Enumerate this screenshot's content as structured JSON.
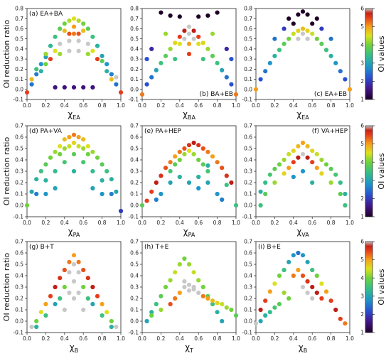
{
  "figure": {
    "ylabel": "OI reduction ratio",
    "colorbar_label": "OI values",
    "colorbar_ticks": [
      "1",
      "2",
      "3",
      "4",
      "5",
      "6"
    ],
    "colorbar_range": [
      1,
      6
    ],
    "colormap": [
      "#2a0a3a",
      "#3d1f8a",
      "#2b5bd0",
      "#2fa8c8",
      "#3cc08a",
      "#7dd83a",
      "#e8e21e",
      "#f79a1a",
      "#e8401a",
      "#b01818",
      "#c8c8c8"
    ]
  },
  "chart_data": [
    {
      "id": "a",
      "type": "scatter",
      "title": "(a) EA+BA",
      "title_pos": "top-left",
      "xlabel_main": "χ",
      "xlabel_sub": "EA",
      "xlim": [
        0,
        1
      ],
      "ylim": [
        -0.1,
        0.8
      ],
      "x": [
        0.4,
        0.45,
        0.5,
        0.55,
        0.6,
        0.35,
        0.65,
        0.3,
        0.7,
        0.25,
        0.75,
        0.2,
        0.8,
        0.15,
        0.85,
        0.1,
        0.9,
        0.05,
        0.95,
        0.0,
        1.0,
        0.3,
        0.4,
        0.5,
        0.6,
        0.7,
        0.5,
        0.45,
        0.55,
        0.2,
        0.1,
        0.05,
        0.9,
        0.95,
        0.35,
        0.45,
        0.55,
        0.65,
        0.4,
        0.6,
        0.5,
        0.2,
        0.3,
        0.7,
        0.8,
        0.15,
        0.85,
        0.25,
        0.75,
        0.45,
        0.55,
        0.35,
        0.65
      ],
      "y": [
        0.65,
        0.68,
        0.7,
        0.68,
        0.65,
        0.6,
        0.6,
        0.52,
        0.52,
        0.43,
        0.43,
        0.32,
        0.33,
        0.25,
        0.25,
        0.15,
        0.15,
        0.05,
        0.05,
        -0.03,
        -0.03,
        0.02,
        0.02,
        0.02,
        0.02,
        0.02,
        0.55,
        0.55,
        0.55,
        0.35,
        0.2,
        0.1,
        0.1,
        0.12,
        0.45,
        0.48,
        0.48,
        0.45,
        0.58,
        0.58,
        0.62,
        0.25,
        0.38,
        0.38,
        0.28,
        0.18,
        0.18,
        0.3,
        0.3,
        0.38,
        0.38,
        0.35,
        0.35
      ],
      "c": [
        4,
        4.3,
        4.5,
        4.3,
        4,
        3.8,
        3.8,
        3.5,
        3.5,
        3.3,
        3.2,
        3,
        3,
        2.8,
        2.8,
        2.6,
        2.6,
        2.5,
        2.5,
        5.5,
        5.5,
        1.5,
        1.5,
        1.5,
        1.5,
        1.5,
        5.2,
        5.4,
        5.4,
        4.2,
        3.5,
        4.8,
        4.8,
        6,
        6,
        6,
        6,
        6,
        4.8,
        4.8,
        5,
        4,
        4.5,
        4.5,
        3.8,
        3.2,
        3.2,
        5.5,
        5.5,
        6,
        6,
        4.2,
        4.2
      ]
    },
    {
      "id": "b",
      "type": "scatter",
      "title": "(b) BA+EB",
      "title_pos": "bottom-right",
      "xlabel_main": "χ",
      "xlabel_sub": "BA",
      "xlim": [
        0,
        1
      ],
      "ylim": [
        -0.1,
        0.8
      ],
      "x": [
        0.5,
        0.45,
        0.55,
        0.4,
        0.6,
        0.35,
        0.65,
        0.3,
        0.7,
        0.25,
        0.75,
        0.2,
        0.8,
        0.15,
        0.85,
        0.1,
        0.9,
        0.05,
        0.95,
        0.0,
        1.0,
        0.2,
        0.3,
        0.4,
        0.6,
        0.7,
        0.8,
        0.5,
        0.45,
        0.55,
        0.5,
        0.4,
        0.6,
        0.1,
        0.9,
        0.05,
        0.95,
        0.25,
        0.75,
        0.35,
        0.65,
        0.5
      ],
      "y": [
        0.62,
        0.58,
        0.58,
        0.52,
        0.52,
        0.46,
        0.46,
        0.4,
        0.4,
        0.33,
        0.33,
        0.26,
        0.26,
        0.19,
        0.19,
        0.12,
        0.12,
        0.05,
        0.05,
        -0.05,
        -0.05,
        0.76,
        0.73,
        0.72,
        0.72,
        0.73,
        0.76,
        0.55,
        0.5,
        0.5,
        0.45,
        0.45,
        0.45,
        0.4,
        0.4,
        0.3,
        0.3,
        0.55,
        0.55,
        0.3,
        0.3,
        0.35
      ],
      "c": [
        6,
        5.8,
        5.8,
        5.5,
        5.5,
        4.6,
        4.6,
        4.2,
        4.2,
        3.8,
        3.8,
        3.5,
        3.5,
        3,
        3,
        2.5,
        2.5,
        2.2,
        2.2,
        5.2,
        5.2,
        1,
        1,
        1,
        1,
        1,
        1,
        6,
        6,
        6,
        5,
        4.5,
        4.5,
        1.8,
        1.8,
        2.2,
        2.2,
        4.2,
        4.2,
        3.5,
        3.5,
        5.5
      ]
    },
    {
      "id": "c",
      "type": "scatter",
      "title": "(c) EA+EB",
      "title_pos": "bottom-right",
      "xlabel_main": "χ",
      "xlabel_sub": "EA",
      "xlim": [
        0,
        1
      ],
      "ylim": [
        -0.1,
        0.8
      ],
      "x": [
        0.5,
        0.45,
        0.55,
        0.4,
        0.6,
        0.35,
        0.65,
        0.3,
        0.7,
        0.25,
        0.75,
        0.2,
        0.8,
        0.15,
        0.85,
        0.1,
        0.9,
        0.05,
        0.95,
        0.0,
        1.0,
        0.35,
        0.45,
        0.5,
        0.55,
        0.65,
        0.4,
        0.6,
        0.3,
        0.7,
        0.2,
        0.8,
        0.5,
        0.45,
        0.55
      ],
      "y": [
        0.6,
        0.58,
        0.58,
        0.55,
        0.55,
        0.5,
        0.5,
        0.45,
        0.45,
        0.39,
        0.39,
        0.33,
        0.33,
        0.26,
        0.26,
        0.18,
        0.18,
        0.1,
        0.1,
        0.0,
        0.0,
        0.7,
        0.74,
        0.77,
        0.74,
        0.7,
        0.65,
        0.65,
        0.6,
        0.6,
        0.5,
        0.5,
        0.55,
        0.5,
        0.5
      ],
      "c": [
        4.8,
        4.6,
        4.6,
        4.4,
        4.4,
        4,
        4,
        3.8,
        3.8,
        3.5,
        3.5,
        3.2,
        3.2,
        2.8,
        2.8,
        2.5,
        2.5,
        2.2,
        2.2,
        5,
        5,
        1,
        1,
        1,
        1,
        1,
        1,
        1,
        2,
        2,
        2.5,
        2.5,
        6,
        6,
        6
      ]
    },
    {
      "id": "d",
      "type": "scatter",
      "title": "(d) PA+VA",
      "title_pos": "top-left",
      "xlabel_main": "χ",
      "xlabel_sub": "PA",
      "xlim": [
        0,
        1
      ],
      "ylim": [
        -0.1,
        0.7
      ],
      "x": [
        0.5,
        0.45,
        0.55,
        0.4,
        0.6,
        0.35,
        0.65,
        0.3,
        0.7,
        0.25,
        0.75,
        0.2,
        0.8,
        0.15,
        0.85,
        0.1,
        0.9,
        0.05,
        0.95,
        0.5,
        0.45,
        0.55,
        0.4,
        0.6,
        0.35,
        0.65,
        0.5,
        0.4,
        0.6,
        0.3,
        0.7,
        0.2,
        0.8,
        0.5,
        0.3,
        0.7,
        0.2,
        0.8,
        0.1,
        0.9,
        0.0,
        1.0
      ],
      "y": [
        0.62,
        0.6,
        0.6,
        0.58,
        0.58,
        0.52,
        0.52,
        0.47,
        0.47,
        0.42,
        0.42,
        0.36,
        0.36,
        0.3,
        0.3,
        0.23,
        0.23,
        0.12,
        0.12,
        0.55,
        0.52,
        0.52,
        0.5,
        0.5,
        0.45,
        0.45,
        0.45,
        0.38,
        0.38,
        0.3,
        0.3,
        0.22,
        0.22,
        0.3,
        0.15,
        0.15,
        0.1,
        0.1,
        0.1,
        0.1,
        0.0,
        -0.05
      ],
      "c": [
        5.2,
        5,
        5,
        4.8,
        4.8,
        4.5,
        4.5,
        4.2,
        4.2,
        4,
        4,
        3.8,
        3.8,
        3.5,
        3.5,
        3.2,
        3.2,
        3,
        3,
        4.6,
        4.4,
        4.4,
        4.2,
        4.2,
        4,
        4,
        3.8,
        3.6,
        3.6,
        3.4,
        3.4,
        3.2,
        3.2,
        3.2,
        3,
        3,
        2.8,
        2.8,
        2.6,
        2.6,
        4,
        2
      ]
    },
    {
      "id": "e",
      "type": "scatter",
      "title": "(e) PA+HEP",
      "title_pos": "top-left",
      "xlabel_main": "χ",
      "xlabel_sub": "PA",
      "xlim": [
        0,
        1
      ],
      "ylim": [
        -0.1,
        0.7
      ],
      "x": [
        0.55,
        0.5,
        0.6,
        0.45,
        0.65,
        0.4,
        0.7,
        0.35,
        0.75,
        0.3,
        0.8,
        0.25,
        0.85,
        0.2,
        0.9,
        0.15,
        0.95,
        0.1,
        0.05,
        0.5,
        0.45,
        0.55,
        0.4,
        0.6,
        0.35,
        0.65,
        0.3,
        0.7,
        0.4,
        0.5,
        0.6,
        0.3,
        0.7,
        0.2,
        0.8,
        0.15,
        0.85,
        0.0,
        1.0,
        0.6,
        0.7,
        0.9
      ],
      "y": [
        0.55,
        0.53,
        0.53,
        0.5,
        0.5,
        0.47,
        0.47,
        0.43,
        0.43,
        0.38,
        0.38,
        0.33,
        0.33,
        0.26,
        0.26,
        0.2,
        0.2,
        0.12,
        0.04,
        0.48,
        0.45,
        0.45,
        0.4,
        0.4,
        0.36,
        0.36,
        0.3,
        0.3,
        0.25,
        0.2,
        0.25,
        0.2,
        0.2,
        0.1,
        0.1,
        0.05,
        0.05,
        0.0,
        0.0,
        0.15,
        0.35,
        0.18
      ],
      "c": [
        5.8,
        5.6,
        5.6,
        5.4,
        5.4,
        5.2,
        5.2,
        5,
        5,
        5.2,
        5.2,
        5.4,
        5.4,
        5.6,
        5.6,
        5.8,
        5.8,
        5.5,
        5.5,
        4.5,
        4.2,
        4.2,
        4,
        4,
        3.8,
        3.8,
        3.6,
        3.6,
        3.2,
        3,
        3.2,
        3,
        3,
        2.8,
        2.8,
        2.6,
        2.6,
        3.8,
        3.5,
        2.8,
        3.2,
        3.5
      ]
    },
    {
      "id": "f",
      "type": "scatter",
      "title": "(f) VA+HEP",
      "title_pos": "top-right",
      "xlabel_main": "χ",
      "xlabel_sub": "VA",
      "xlim": [
        0,
        1
      ],
      "ylim": [
        -0.1,
        0.7
      ],
      "x": [
        0.5,
        0.45,
        0.55,
        0.4,
        0.6,
        0.35,
        0.65,
        0.3,
        0.7,
        0.25,
        0.75,
        0.2,
        0.8,
        0.15,
        0.85,
        0.1,
        0.9,
        0.05,
        0.95,
        0.5,
        0.45,
        0.55,
        0.4,
        0.6,
        0.35,
        0.65,
        0.3,
        0.7,
        0.2,
        0.8,
        0.1,
        0.9,
        0.05,
        0.95,
        0.5,
        0.4,
        0.6
      ],
      "y": [
        0.55,
        0.52,
        0.52,
        0.48,
        0.48,
        0.45,
        0.45,
        0.4,
        0.4,
        0.36,
        0.36,
        0.32,
        0.32,
        0.27,
        0.27,
        0.2,
        0.2,
        0.12,
        0.1,
        0.45,
        0.42,
        0.42,
        0.38,
        0.38,
        0.33,
        0.33,
        0.28,
        0.28,
        0.2,
        0.2,
        0.1,
        0.1,
        0.0,
        0.0,
        0.3,
        0.25,
        0.2
      ],
      "c": [
        5,
        4.8,
        4.8,
        4.6,
        4.6,
        4.4,
        4.4,
        4.2,
        4.2,
        4,
        4,
        3.8,
        3.8,
        3.6,
        3.6,
        3.4,
        3.4,
        3.2,
        3.2,
        6,
        5.8,
        5.8,
        5.5,
        5.5,
        5,
        5,
        4.6,
        4.6,
        4.2,
        4.2,
        3.8,
        3.8,
        3.5,
        3.5,
        2.8,
        2.8,
        3.2
      ]
    },
    {
      "id": "g",
      "type": "scatter",
      "title": "(g) B+T",
      "title_pos": "top-left",
      "xlabel_main": "χ",
      "xlabel_sub": "B",
      "xlim": [
        0,
        1
      ],
      "ylim": [
        -0.1,
        0.7
      ],
      "x": [
        0.5,
        0.45,
        0.55,
        0.4,
        0.6,
        0.35,
        0.65,
        0.3,
        0.7,
        0.25,
        0.75,
        0.2,
        0.8,
        0.15,
        0.85,
        0.1,
        0.9,
        0.05,
        0.95,
        0.5,
        0.45,
        0.55,
        0.5,
        0.4,
        0.6,
        0.35,
        0.65,
        0.3,
        0.7,
        0.2,
        0.8,
        0.1,
        0.9,
        0.5,
        0.55,
        0.45,
        0.6,
        0.4
      ],
      "y": [
        0.58,
        0.52,
        0.52,
        0.45,
        0.45,
        0.38,
        0.38,
        0.3,
        0.3,
        0.22,
        0.22,
        0.15,
        0.15,
        0.08,
        0.08,
        0.0,
        0.0,
        -0.05,
        -0.05,
        0.5,
        0.43,
        0.43,
        0.35,
        0.3,
        0.3,
        0.2,
        0.2,
        0.15,
        0.15,
        0.05,
        0.05,
        -0.05,
        -0.05,
        0.2,
        0.25,
        0.25,
        0.1,
        0.1
      ],
      "c": [
        5,
        5.2,
        5.2,
        5.4,
        5.4,
        5.6,
        5.6,
        5.8,
        5.8,
        5.5,
        5.5,
        5,
        5,
        4.5,
        4.5,
        4,
        4,
        6,
        6,
        6,
        6,
        6,
        6,
        4,
        4,
        3.5,
        3.5,
        3,
        3,
        3.5,
        3.5,
        3.2,
        3.2,
        6,
        6,
        6,
        6,
        6
      ]
    },
    {
      "id": "h",
      "type": "scatter",
      "title": "(h) T+E",
      "title_pos": "top-left",
      "xlabel_main": "χ",
      "xlabel_sub": "T",
      "xlim": [
        0,
        1
      ],
      "ylim": [
        -0.1,
        0.7
      ],
      "x": [
        0.45,
        0.4,
        0.5,
        0.35,
        0.55,
        0.3,
        0.6,
        0.25,
        0.65,
        0.2,
        0.7,
        0.15,
        0.75,
        0.1,
        0.8,
        0.05,
        0.85,
        0.45,
        0.5,
        0.55,
        0.6,
        0.65,
        0.7,
        0.75,
        0.8,
        0.85,
        0.9,
        0.95,
        1.0,
        0.4,
        0.35,
        0.3,
        0.2,
        0.1,
        0.45,
        0.5,
        0.55
      ],
      "y": [
        0.55,
        0.5,
        0.5,
        0.43,
        0.43,
        0.36,
        0.36,
        0.3,
        0.3,
        0.22,
        0.22,
        0.15,
        0.15,
        0.08,
        0.08,
        0.0,
        0.0,
        0.3,
        0.27,
        0.28,
        0.25,
        0.22,
        0.2,
        0.18,
        0.16,
        0.15,
        0.12,
        0.1,
        0.05,
        0.25,
        0.2,
        0.15,
        0.1,
        0.05,
        0.35,
        0.32,
        0.3
      ],
      "c": [
        4,
        4.2,
        4.2,
        4.4,
        4.4,
        4.2,
        4.2,
        4,
        4,
        3.8,
        3.8,
        3.5,
        3.5,
        3.2,
        3.2,
        3,
        3,
        6,
        6,
        6,
        6,
        5.2,
        5,
        4.8,
        4.6,
        4.4,
        4.2,
        4,
        3.8,
        5,
        5.2,
        5.4,
        4.2,
        4,
        6,
        6,
        6
      ]
    },
    {
      "id": "i",
      "type": "scatter",
      "title": "(i) B+E",
      "title_pos": "top-left",
      "xlabel_main": "χ",
      "xlabel_sub": "B",
      "xlim": [
        0,
        1
      ],
      "ylim": [
        -0.1,
        0.7
      ],
      "x": [
        0.45,
        0.4,
        0.5,
        0.35,
        0.55,
        0.3,
        0.6,
        0.25,
        0.65,
        0.2,
        0.7,
        0.15,
        0.75,
        0.1,
        0.8,
        0.05,
        0.85,
        0.9,
        0.95,
        0.45,
        0.4,
        0.5,
        0.55,
        0.6,
        0.65,
        0.7,
        0.3,
        0.35,
        0.25,
        0.2,
        0.15,
        0.1,
        0.05,
        0.0,
        0.5,
        0.55,
        0.6
      ],
      "y": [
        0.6,
        0.58,
        0.58,
        0.52,
        0.52,
        0.45,
        0.45,
        0.4,
        0.4,
        0.33,
        0.33,
        0.26,
        0.26,
        0.18,
        0.18,
        0.1,
        0.1,
        0.02,
        -0.02,
        0.45,
        0.4,
        0.4,
        0.35,
        0.3,
        0.25,
        0.2,
        0.25,
        0.2,
        0.15,
        0.12,
        0.08,
        0.05,
        0.0,
        -0.02,
        0.3,
        0.25,
        0.2
      ],
      "c": [
        2.5,
        2.8,
        2.8,
        3,
        3,
        3.5,
        3.5,
        4,
        4,
        4.5,
        4.5,
        5,
        5,
        5.5,
        5.5,
        5.8,
        5.8,
        5.5,
        5.2,
        5,
        5.2,
        5.4,
        5.6,
        5.8,
        5.8,
        5.5,
        4.2,
        4,
        3.8,
        3.6,
        3.4,
        3.2,
        3,
        6,
        6,
        6,
        6
      ]
    }
  ]
}
